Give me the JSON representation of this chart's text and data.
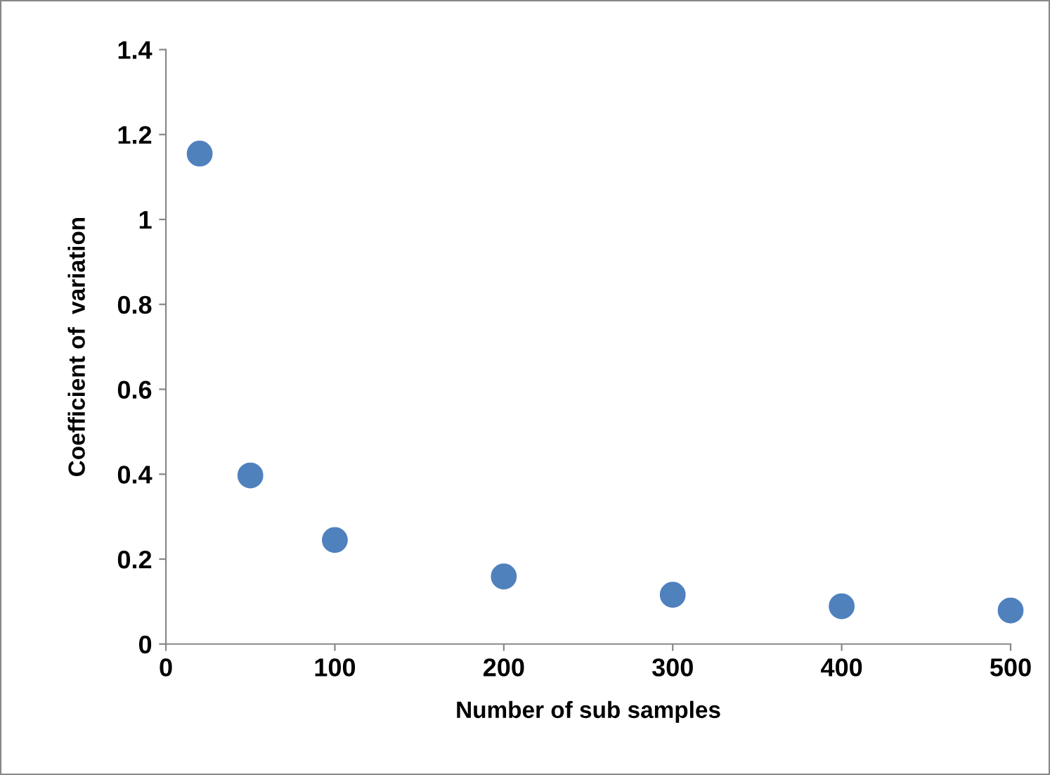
{
  "chart_data": {
    "type": "scatter",
    "xlabel": "Number of sub samples",
    "ylabel": "Coefficient of  variation",
    "x": [
      20,
      50,
      100,
      200,
      300,
      400,
      500
    ],
    "values": [
      1.155,
      0.397,
      0.245,
      0.159,
      0.116,
      0.089,
      0.079
    ],
    "color": "#4f81bd",
    "marker": "circle",
    "xlim": [
      0,
      500
    ],
    "xticks": [
      0,
      100,
      200,
      300,
      400,
      500
    ],
    "ylim": [
      0,
      1.4
    ],
    "yticks": [
      0,
      0.2,
      0.4,
      0.6,
      0.8,
      1,
      1.2,
      1.4
    ],
    "grid": false,
    "legend": false
  }
}
